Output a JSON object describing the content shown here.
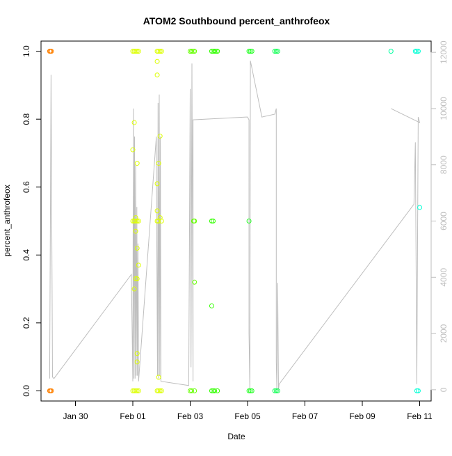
{
  "chart_data": {
    "type": "scatter",
    "title": "ATOM2 Southbound percent_anthrofeox",
    "xlabel": "Date",
    "ylabel": "percent_anthrofeox",
    "x_ticks": [
      {
        "day": 30,
        "label": "Jan 30"
      },
      {
        "day": 32,
        "label": "Feb 01"
      },
      {
        "day": 34,
        "label": "Feb 03"
      },
      {
        "day": 36,
        "label": "Feb 05"
      },
      {
        "day": 38,
        "label": "Feb 07"
      },
      {
        "day": 40,
        "label": "Feb 09"
      },
      {
        "day": 42,
        "label": "Feb 11"
      }
    ],
    "xlim_days": [
      28.8,
      42.4
    ],
    "ylim": [
      -0.03,
      1.03
    ],
    "y_ticks": [
      0.0,
      0.2,
      0.4,
      0.6,
      0.8,
      1.0
    ],
    "y_tick_labels": [
      "0.0",
      "0.2",
      "0.4",
      "0.6",
      "0.8",
      "1.0"
    ],
    "y2lim": [
      -400,
      12400
    ],
    "y2_ticks": [
      0,
      2000,
      4000,
      6000,
      8000,
      10000,
      12000
    ],
    "y2_tick_labels": [
      "0",
      "2000",
      "4000",
      "6000",
      "8000",
      "10000",
      "12000"
    ],
    "grid": false,
    "legend": "none",
    "colors": {
      "axis": "#000000",
      "secondary_axis": "#bebebe",
      "line": "#bebebe"
    },
    "point_series": [
      {
        "color": "#ff8000",
        "points": [
          [
            29.1,
            1
          ],
          [
            29.13,
            1
          ],
          [
            29.16,
            1
          ],
          [
            29.1,
            0
          ],
          [
            29.13,
            0
          ],
          [
            29.16,
            0
          ]
        ]
      },
      {
        "color": "#ddff00",
        "points": [
          [
            32.0,
            1
          ],
          [
            32.05,
            1
          ],
          [
            32.1,
            1
          ],
          [
            32.15,
            1
          ],
          [
            32.2,
            1
          ],
          [
            32.0,
            0
          ],
          [
            32.05,
            0
          ],
          [
            32.1,
            0
          ],
          [
            32.15,
            0
          ],
          [
            32.2,
            0
          ],
          [
            32.05,
            0.79
          ],
          [
            32.0,
            0.71
          ],
          [
            32.15,
            0.67
          ],
          [
            32.0,
            0.5
          ],
          [
            32.05,
            0.5
          ],
          [
            32.1,
            0.5
          ],
          [
            32.15,
            0.5
          ],
          [
            32.2,
            0.5
          ],
          [
            32.1,
            0.51
          ],
          [
            32.1,
            0.47
          ],
          [
            32.15,
            0.42
          ],
          [
            32.1,
            0.33
          ],
          [
            32.15,
            0.33
          ],
          [
            32.05,
            0.3
          ],
          [
            32.15,
            0.11
          ],
          [
            32.15,
            0.085
          ],
          [
            32.2,
            0.37
          ]
        ]
      },
      {
        "color": "#ddff00",
        "points": [
          [
            32.85,
            1
          ],
          [
            32.9,
            1
          ],
          [
            32.95,
            1
          ],
          [
            33.0,
            1
          ],
          [
            32.85,
            0
          ],
          [
            32.9,
            0
          ],
          [
            32.95,
            0
          ],
          [
            33.0,
            0
          ],
          [
            32.85,
            0.97
          ],
          [
            32.85,
            0.93
          ],
          [
            32.95,
            0.75
          ],
          [
            32.9,
            0.67
          ],
          [
            32.85,
            0.61
          ],
          [
            32.85,
            0.53
          ],
          [
            32.85,
            0.5
          ],
          [
            32.9,
            0.5
          ],
          [
            32.95,
            0.51
          ],
          [
            33.0,
            0.5
          ],
          [
            32.9,
            0.04
          ]
        ]
      },
      {
        "color": "#66ff00",
        "points": [
          [
            34.0,
            1
          ],
          [
            34.05,
            1
          ],
          [
            34.1,
            1
          ],
          [
            34.15,
            1
          ],
          [
            34.0,
            0
          ],
          [
            34.05,
            0
          ],
          [
            34.15,
            0
          ],
          [
            34.12,
            0.5
          ],
          [
            34.15,
            0.5
          ],
          [
            34.15,
            0.32
          ]
        ]
      },
      {
        "color": "#33ff00",
        "points": [
          [
            34.75,
            1
          ],
          [
            34.8,
            1
          ],
          [
            34.85,
            1
          ],
          [
            34.9,
            1
          ],
          [
            34.95,
            1
          ],
          [
            34.75,
            0
          ],
          [
            34.8,
            0
          ],
          [
            34.85,
            0
          ],
          [
            34.95,
            0
          ],
          [
            34.75,
            0.5
          ],
          [
            34.8,
            0.5
          ],
          [
            34.75,
            0.25
          ]
        ]
      },
      {
        "color": "#22ff22",
        "points": [
          [
            36.05,
            1
          ],
          [
            36.1,
            1
          ],
          [
            36.15,
            1
          ],
          [
            36.05,
            0
          ],
          [
            36.1,
            0
          ],
          [
            36.15,
            0
          ],
          [
            36.05,
            0.5
          ]
        ]
      },
      {
        "color": "#11ff55",
        "points": [
          [
            36.95,
            1
          ],
          [
            37.0,
            1
          ],
          [
            37.05,
            1
          ],
          [
            36.95,
            0
          ],
          [
            37.0,
            0
          ],
          [
            37.05,
            0
          ]
        ]
      },
      {
        "color": "#00ffa0",
        "points": [
          [
            41.0,
            1
          ]
        ]
      },
      {
        "color": "#00ffd5",
        "points": [
          [
            41.85,
            1
          ],
          [
            41.9,
            1
          ],
          [
            41.95,
            1
          ],
          [
            41.9,
            0
          ],
          [
            41.95,
            0
          ],
          [
            42.0,
            0.54
          ]
        ]
      }
    ],
    "line_series": {
      "axis": "secondary",
      "points": [
        [
          29.1,
          400
        ],
        [
          29.15,
          11200
        ],
        [
          29.2,
          450
        ],
        [
          29.25,
          400
        ],
        [
          31.95,
          4100
        ],
        [
          32.0,
          300
        ],
        [
          32.02,
          10000
        ],
        [
          32.04,
          400
        ],
        [
          32.06,
          9000
        ],
        [
          32.08,
          400
        ],
        [
          32.1,
          8000
        ],
        [
          32.12,
          500
        ],
        [
          32.14,
          6500
        ],
        [
          32.16,
          500
        ],
        [
          32.18,
          5200
        ],
        [
          32.2,
          300
        ],
        [
          32.82,
          9000
        ],
        [
          32.84,
          4100
        ],
        [
          32.86,
          500
        ],
        [
          32.88,
          10200
        ],
        [
          32.9,
          400
        ],
        [
          32.92,
          10500
        ],
        [
          32.94,
          500
        ],
        [
          32.96,
          9000
        ],
        [
          32.98,
          300
        ],
        [
          33.95,
          150
        ],
        [
          34.0,
          10700
        ],
        [
          34.03,
          800
        ],
        [
          34.06,
          11600
        ],
        [
          34.1,
          300
        ],
        [
          34.1,
          9600
        ],
        [
          35.95,
          9700
        ],
        [
          36.0,
          9700
        ],
        [
          36.05,
          9600
        ],
        [
          36.05,
          2000
        ],
        [
          36.08,
          0
        ],
        [
          36.1,
          11700
        ],
        [
          36.5,
          9700
        ],
        [
          36.95,
          9800
        ],
        [
          37.0,
          10000
        ],
        [
          37.0,
          1000
        ],
        [
          37.02,
          0
        ],
        [
          37.05,
          3800
        ],
        [
          37.08,
          0
        ],
        [
          37.1,
          200
        ],
        [
          41.8,
          6600
        ],
        [
          41.85,
          8800
        ],
        [
          41.9,
          200
        ],
        [
          41.95,
          9700
        ],
        [
          42.0,
          9500
        ],
        [
          41.0,
          10000
        ]
      ]
    }
  }
}
